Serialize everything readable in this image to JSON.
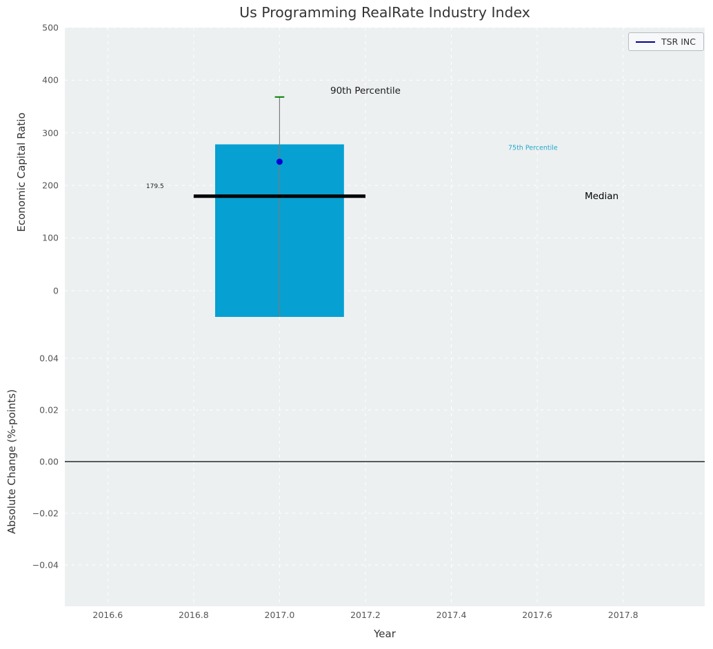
{
  "chart_data": {
    "type": "bar",
    "title": "Us Programming RealRate Industry Index",
    "xlabel": "Year",
    "x_lim": [
      2016.5,
      2017.99
    ],
    "x_ticks": [
      {
        "v": 2016.6,
        "label": "2016.6"
      },
      {
        "v": 2016.8,
        "label": "2016.8"
      },
      {
        "v": 2017.0,
        "label": "2017.0"
      },
      {
        "v": 2017.2,
        "label": "2017.2"
      },
      {
        "v": 2017.4,
        "label": "2017.4"
      },
      {
        "v": 2017.6,
        "label": "2017.6"
      },
      {
        "v": 2017.8,
        "label": "2017.8"
      }
    ],
    "legend": {
      "label": "TSR INC",
      "line_color": "#00008b",
      "position": "upper right"
    },
    "top_panel": {
      "ylabel": "Economic Capital Ratio",
      "ylim": [
        -50,
        500
      ],
      "grid": true,
      "y_ticks": [
        {
          "v": 0,
          "label": "0"
        },
        {
          "v": 100,
          "label": "100"
        },
        {
          "v": 200,
          "label": "200"
        },
        {
          "v": 300,
          "label": "300"
        },
        {
          "v": 400,
          "label": "400"
        },
        {
          "v": 500,
          "label": "500"
        }
      ],
      "bar": {
        "x": 2017.0,
        "width": 0.3,
        "value": 278,
        "base": -50,
        "color": "#07a0d2"
      },
      "whisker": {
        "x": 2017.0,
        "from": -50,
        "to": 368,
        "color": "#7a7a7a"
      },
      "whisker_cap": {
        "x": 2017.0,
        "y": 368,
        "half_width": 0.011,
        "color": "#008000"
      },
      "point": {
        "x": 2017.0,
        "y": 245,
        "color": "#0000d8"
      },
      "median_line": {
        "y": 179.5,
        "x_from": 2016.8,
        "x_to": 2017.2,
        "color": "#000000"
      },
      "annotations": [
        {
          "id": "90th-percentile",
          "text": "90th Percentile",
          "x": 2017.2,
          "y": 380,
          "font_size": 13.5,
          "color": "#1a1a1a"
        },
        {
          "id": "75th-percentile",
          "text": "75th Percentile",
          "x": 2017.59,
          "y": 271,
          "font_size": 9.5,
          "color": "#22a7cb"
        },
        {
          "id": "median",
          "text": "Median",
          "x": 2017.75,
          "y": 179.5,
          "font_size": 13.5,
          "color": "#000000"
        },
        {
          "id": "median-value",
          "text": "179.5",
          "x": 2016.71,
          "y": 197.5,
          "font_size": 9,
          "color": "#1a1a1a"
        }
      ]
    },
    "bottom_panel": {
      "ylabel": "Absolute Change (%-points)",
      "ylim": [
        -0.056,
        0.056
      ],
      "grid": true,
      "y_ticks": [
        {
          "v": -0.04,
          "label": "−0.04"
        },
        {
          "v": -0.02,
          "label": "−0.02"
        },
        {
          "v": 0.0,
          "label": "0.00"
        },
        {
          "v": 0.02,
          "label": "0.02"
        },
        {
          "v": 0.04,
          "label": "0.04"
        }
      ],
      "zero_line": {
        "y": 0,
        "color": "#000000"
      }
    },
    "style": {
      "panel_bg": "#edf0f1",
      "grid_color": "#ffffff",
      "tick_color": "#555555",
      "title_color": "#333333"
    }
  }
}
